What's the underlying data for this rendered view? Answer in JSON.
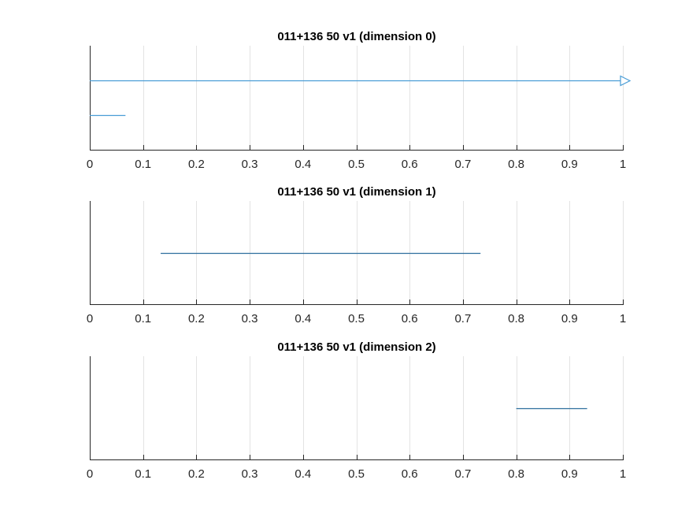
{
  "chart_data": [
    {
      "type": "barcode",
      "title": "011+136 50 v1 (dimension 0)",
      "xlim": [
        0,
        1
      ],
      "xticks": [
        "0",
        "0.1",
        "0.2",
        "0.3",
        "0.4",
        "0.5",
        "0.6",
        "0.7",
        "0.8",
        "0.9",
        "1"
      ],
      "grid": "x",
      "intervals": [
        {
          "birth": 0,
          "death": 1,
          "infinite": true
        },
        {
          "birth": 0,
          "death": 0.067,
          "infinite": false
        }
      ],
      "color": "#4a9dd6"
    },
    {
      "type": "barcode",
      "title": "011+136 50 v1 (dimension 1)",
      "xlim": [
        0,
        1
      ],
      "xticks": [
        "0",
        "0.1",
        "0.2",
        "0.3",
        "0.4",
        "0.5",
        "0.6",
        "0.7",
        "0.8",
        "0.9",
        "1"
      ],
      "grid": "x",
      "intervals": [
        {
          "birth": 0.133,
          "death": 0.733,
          "infinite": false
        }
      ],
      "color": "#2f6f9e"
    },
    {
      "type": "barcode",
      "title": "011+136 50 v1 (dimension 2)",
      "xlim": [
        0,
        1
      ],
      "xticks": [
        "0",
        "0.1",
        "0.2",
        "0.3",
        "0.4",
        "0.5",
        "0.6",
        "0.7",
        "0.8",
        "0.9",
        "1"
      ],
      "grid": "x",
      "intervals": [
        {
          "birth": 0.8,
          "death": 0.933,
          "infinite": false
        }
      ],
      "color": "#2f6f9e"
    }
  ]
}
